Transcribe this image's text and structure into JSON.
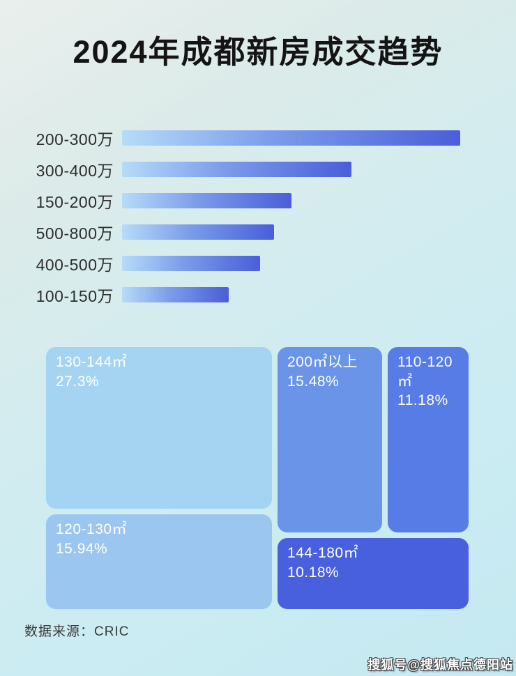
{
  "header": {
    "title": "2024年成都新房成交趋势"
  },
  "footer": {
    "source_label": "数据来源：CRIC",
    "watermark": "搜狐号@搜狐焦点德阳站"
  },
  "palette": {
    "background_top": "#eaefed",
    "background_bottom": "#c5e9f1",
    "bar_gradient_start": "#b5dcf8",
    "bar_gradient_mid": "#7a9cea",
    "bar_gradient_end": "#4a5ed9",
    "bar_label_color": "#2d2d2d",
    "title_color": "#141414",
    "tile_text_color": "#ffffff",
    "tile_colors": [
      "#a5d4f3",
      "#6994e8",
      "#587ce6",
      "#9bc6f0",
      "#4860de"
    ]
  },
  "chart_data": [
    {
      "type": "bar",
      "orientation": "horizontal",
      "title": "2024年成都新房成交趋势",
      "categories": [
        "200-300万",
        "300-400万",
        "150-200万",
        "500-800万",
        "400-500万",
        "100-150万"
      ],
      "values_pct_of_max": [
        100,
        67.8,
        50.1,
        45,
        40.8,
        31.5
      ],
      "xlabel": "",
      "ylabel": "",
      "legend": false,
      "grid": false,
      "note": "no numeric axis shown in image; bar lengths given as percent of the longest bar"
    },
    {
      "type": "treemap",
      "unit": "percent share",
      "items": [
        {
          "label": "130-144㎡",
          "value": 27.3,
          "pct_text": "27.3%"
        },
        {
          "label": "200㎡以上",
          "value": 15.48,
          "pct_text": "15.48%"
        },
        {
          "label": "110-120㎡",
          "value": 11.18,
          "pct_text": "11.18%"
        },
        {
          "label": "120-130㎡",
          "value": 15.94,
          "pct_text": "15.94%"
        },
        {
          "label": "144-180㎡",
          "value": 10.18,
          "pct_text": "10.18%"
        }
      ]
    }
  ]
}
